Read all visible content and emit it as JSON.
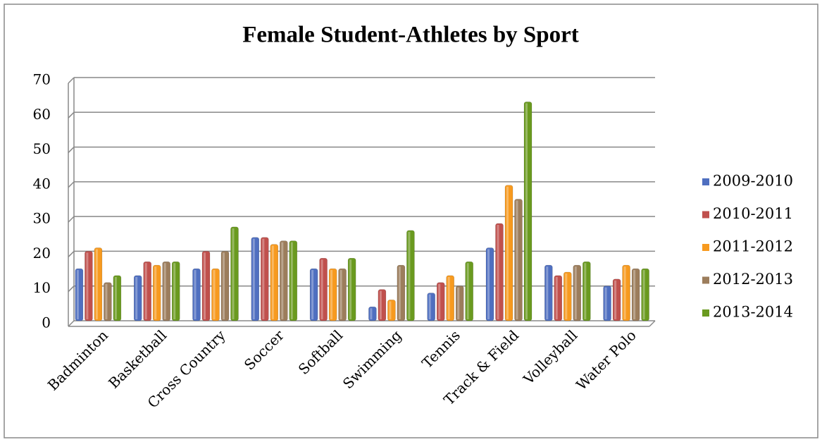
{
  "chart_data": {
    "type": "bar",
    "title": "Female Student-Athletes by Sport",
    "categories": [
      "Badminton",
      "Basketball",
      "Cross Country",
      "Soccer",
      "Softball",
      "Swimming",
      "Tennis",
      "Track & Field",
      "Volleyball",
      "Water Polo"
    ],
    "series": [
      {
        "name": "2009-2010",
        "color": "#4f6fc0",
        "values": [
          15,
          13,
          15,
          24,
          15,
          4,
          8,
          21,
          16,
          10
        ]
      },
      {
        "name": "2010-2011",
        "color": "#c0504d",
        "values": [
          20,
          17,
          20,
          24,
          18,
          9,
          11,
          28,
          13,
          12
        ]
      },
      {
        "name": "2011-2012",
        "color": "#f79a1f",
        "values": [
          21,
          16,
          15,
          22,
          15,
          6,
          13,
          39,
          14,
          16
        ]
      },
      {
        "name": "2012-2013",
        "color": "#9c7d5c",
        "values": [
          11,
          17,
          20,
          23,
          15,
          16,
          10,
          35,
          16,
          15
        ]
      },
      {
        "name": "2013-2014",
        "color": "#6a9a1f",
        "values": [
          13,
          17,
          27,
          23,
          18,
          26,
          17,
          63,
          17,
          15
        ]
      }
    ],
    "ylim": [
      0,
      70
    ],
    "yticks": [
      0,
      10,
      20,
      30,
      40,
      50,
      60,
      70
    ],
    "grid": true,
    "legend": "right"
  }
}
